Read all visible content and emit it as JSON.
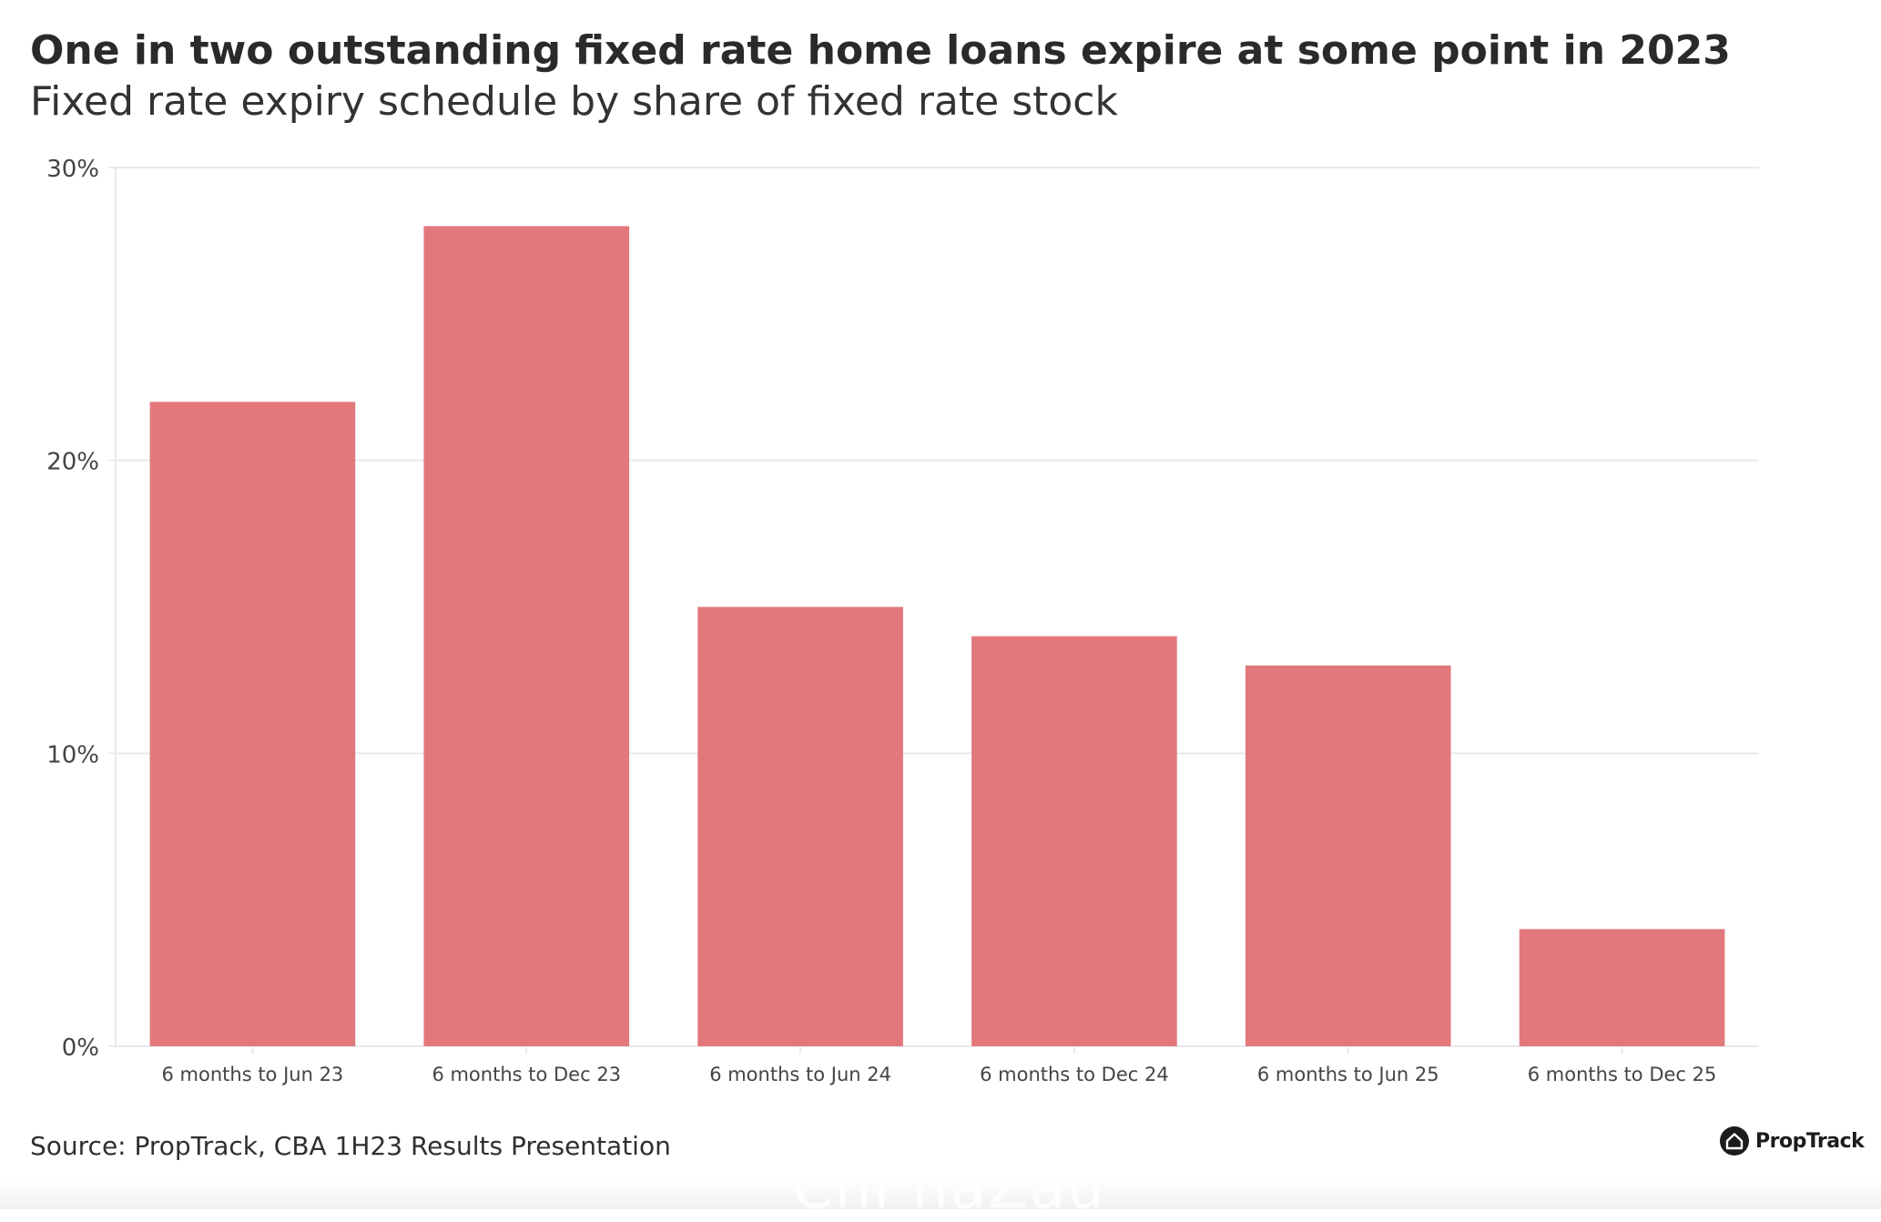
{
  "title": "One in two outstanding fixed rate home loans expire at some point in 2023",
  "subtitle": "Fixed rate expiry schedule by share of fixed rate stock",
  "source": "Source: PropTrack, CBA 1H23 Results Presentation",
  "brand": {
    "name": "PropTrack",
    "icon": "house-circle-icon"
  },
  "watermark": "Chi naZau",
  "colors": {
    "bar": "#E2787C",
    "grid": "#E9E9EE",
    "axis_text": "#444444"
  },
  "chart_data": {
    "type": "bar",
    "categories": [
      "6 months to Jun 23",
      "6 months to Dec 23",
      "6 months to Jun 24",
      "6 months to Dec 24",
      "6 months to Jun 25",
      "6 months to Dec 25"
    ],
    "values": [
      22,
      28,
      15,
      14,
      13,
      4
    ],
    "value_unit": "%",
    "ylim": [
      0,
      30
    ],
    "yticks": [
      0,
      10,
      20,
      30
    ],
    "ytick_labels": [
      "0%",
      "10%",
      "20%",
      "30%"
    ],
    "xlabel": "",
    "ylabel": "",
    "grid": true,
    "legend": "none"
  }
}
